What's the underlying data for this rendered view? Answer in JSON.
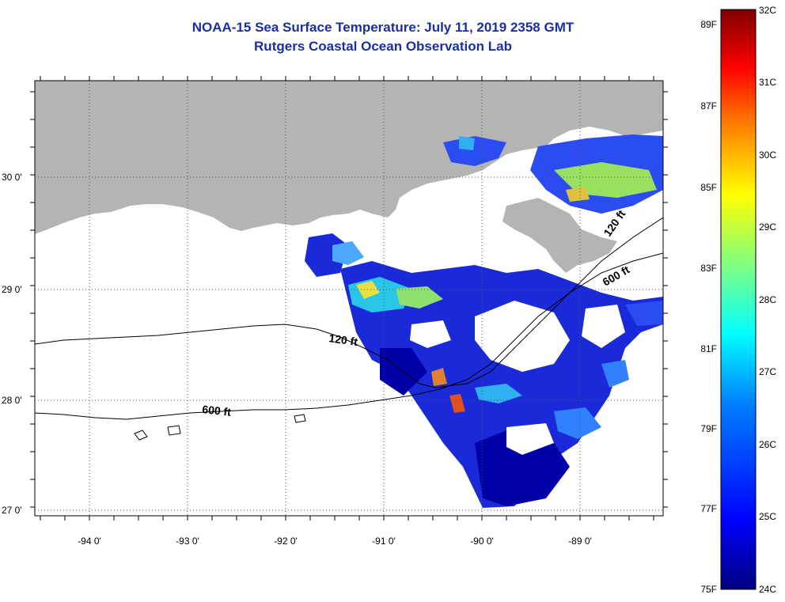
{
  "header": {
    "title": "NOAA-15 Sea Surface Temperature:  July 11, 2019 2358 GMT",
    "subtitle": "Rutgers Coastal Ocean Observation Lab"
  },
  "map": {
    "lat_labels": [
      "30 0'",
      "29 0'",
      "28 0'",
      "27 0'"
    ],
    "lon_labels": [
      "-94 0'",
      "-93 0'",
      "-92 0'",
      "-91 0'",
      "-90 0'",
      "-89 0'"
    ],
    "isobath_labels": [
      "120 ft",
      "600 ft",
      "120 ft",
      "600 ft"
    ],
    "colors": {
      "land": "#b4b4b4",
      "grid": "#555555",
      "isobath": "#000000"
    }
  },
  "colorbar": {
    "fahrenheit_labels": [
      "89F",
      "87F",
      "85F",
      "83F",
      "81F",
      "79F",
      "77F",
      "75F"
    ],
    "celsius_labels": [
      "32C",
      "31C",
      "30C",
      "29C",
      "28C",
      "27C",
      "26C",
      "25C",
      "24C"
    ],
    "range_c": [
      24,
      32
    ],
    "colors": [
      "#00007f",
      "#0000ff",
      "#0080ff",
      "#00ffff",
      "#80ff80",
      "#ffff00",
      "#ff8000",
      "#ff0000",
      "#7f0000"
    ]
  }
}
